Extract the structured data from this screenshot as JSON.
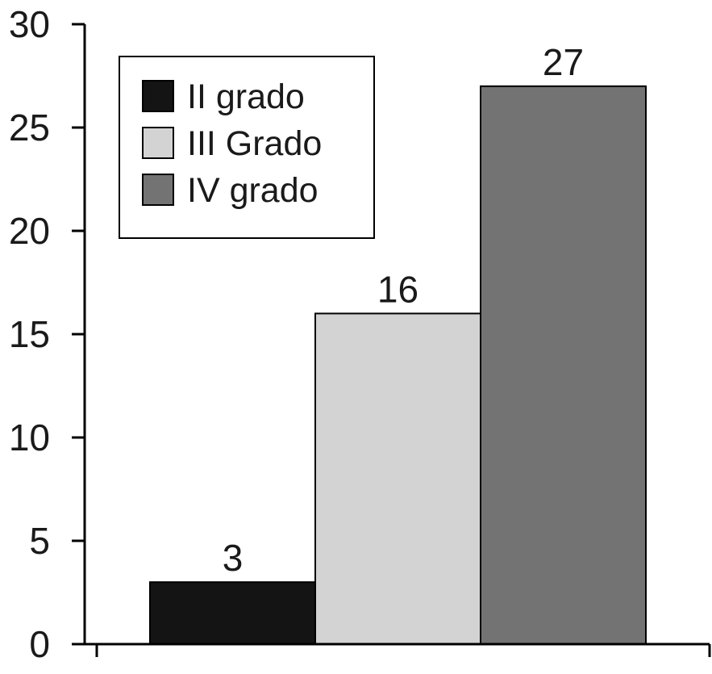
{
  "chart_data": {
    "type": "bar",
    "title": "",
    "xlabel": "",
    "ylabel": "",
    "ylim": [
      0,
      30
    ],
    "yticks": [
      0,
      5,
      10,
      15,
      20,
      25,
      30
    ],
    "grid": false,
    "legend_position": "top-left",
    "series": [
      {
        "name": "II grado",
        "value": 3,
        "color": "#141414"
      },
      {
        "name": "III Grado",
        "value": 16,
        "color": "#d3d3d3"
      },
      {
        "name": "IV grado",
        "value": 27,
        "color": "#737373"
      }
    ],
    "data_labels": [
      "3",
      "16",
      "27"
    ]
  }
}
